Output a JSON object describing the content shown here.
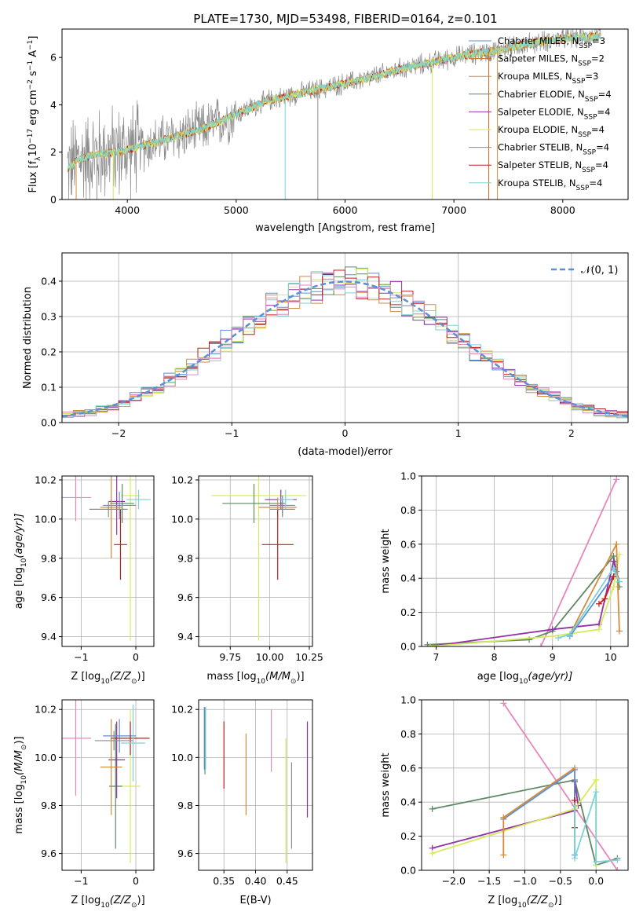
{
  "figure": {
    "title": "PLATE=1730, MJD=53498, FIBERID=0164, z=0.101"
  },
  "colors": {
    "Chabrier MILES": "#5b8fd6",
    "Salpeter MILES": "#d36a1a",
    "Kroupa MILES": "#d58a3a",
    "Chabrier ELODIE": "#5d8a63",
    "Salpeter ELODIE": "#9431a8",
    "Kroupa ELODIE": "#d6ea5c",
    "Chabrier STELIB": "#8c8c8c",
    "Salpeter STELIB": "#c21d1d",
    "Kroupa STELIB": "#7bd3d6",
    "pink": "#e587bd",
    "normal": "#5b8fd6"
  },
  "chart_data": [
    {
      "type": "line",
      "ylabel_main": "Flux [f",
      "ylabel_sub": "λ",
      "ylabel_rest": "10",
      "ylabel_sup1": "−17",
      "ylabel_rest2": " erg cm",
      "ylabel_sup2": "−2",
      "ylabel_rest3": " s",
      "ylabel_sup3": "−1",
      "ylabel_rest4": " A",
      "ylabel_sup4": "−1",
      "ylabel_end": "]",
      "xlabel": "wavelength [Angstrom, rest frame]",
      "xlim": [
        3400,
        8600
      ],
      "ylim": [
        0,
        7.2
      ],
      "xticks": [
        "4000",
        "5000",
        "6000",
        "7000",
        "8000"
      ],
      "yticks": [
        "0",
        "2",
        "4",
        "6"
      ],
      "grid": false,
      "legend_position": "right",
      "legend": [
        {
          "name": "Chabrier MILES",
          "n": "3"
        },
        {
          "name": "Salpeter MILES",
          "n": "2"
        },
        {
          "name": "Kroupa MILES",
          "n": "3"
        },
        {
          "name": "Chabrier ELODIE",
          "n": "4"
        },
        {
          "name": "Salpeter ELODIE",
          "n": "4"
        },
        {
          "name": "Kroupa ELODIE",
          "n": "4"
        },
        {
          "name": "Chabrier STELIB",
          "n": "4"
        },
        {
          "name": "Salpeter STELIB",
          "n": "4"
        },
        {
          "name": "Kroupa STELIB",
          "n": "4"
        }
      ],
      "nssp_prefix": ", N",
      "nssp_sub": "SSP",
      "nssp_eq": "=",
      "continuum_x": [
        3450,
        3550,
        3700,
        3900,
        4100,
        4400,
        4700,
        5000,
        5300,
        5600,
        5900,
        6200,
        6500,
        6800,
        7100,
        7400,
        7700,
        8000,
        8300
      ],
      "continuum_y": [
        1.3,
        1.7,
        1.9,
        2.0,
        2.2,
        2.6,
        3.0,
        3.6,
        4.2,
        4.5,
        4.8,
        5.1,
        5.5,
        5.8,
        6.1,
        6.3,
        6.6,
        6.8,
        6.9
      ]
    },
    {
      "type": "line",
      "ylabel": "Normed distribution",
      "xlabel": "(data-model)/error",
      "xlim": [
        -2.5,
        2.5
      ],
      "ylim": [
        0,
        0.48
      ],
      "xticks": [
        "−2",
        "−1",
        "0",
        "1",
        "2"
      ],
      "xtick_values": [
        -2,
        -1,
        0,
        1,
        2
      ],
      "yticks": [
        "0.0",
        "0.1",
        "0.2",
        "0.3",
        "0.4"
      ],
      "ytick_values": [
        0,
        0.1,
        0.2,
        0.3,
        0.4
      ],
      "grid": true,
      "legend_label": "𝒩(0, 1)",
      "legend_position": "upper right",
      "bin_width": 0.1
    },
    {
      "type": "scatter",
      "ylabel": "age  [log",
      "ylabel_sub": "10",
      "ylabel_rest": "(age/yr)]",
      "xlabel": "Z [log",
      "xlabel_sub": "10",
      "xlabel_rest": "(Z/Z",
      "xlabel_sub2": "⊙",
      "xlabel_end": ")]",
      "xlim": [
        -1.35,
        0.33
      ],
      "ylim": [
        9.35,
        10.22
      ],
      "xticks": [
        "−1",
        "0"
      ],
      "xtick_values": [
        -1,
        0
      ],
      "yticks": [
        "9.4",
        "9.6",
        "9.8",
        "10.0",
        "10.2"
      ],
      "ytick_values": [
        9.4,
        9.6,
        9.8,
        10.0,
        10.2
      ],
      "grid": true,
      "errorbars": [
        {
          "c": "pink",
          "x": -1.1,
          "xe": 0.28,
          "y": 10.11,
          "ye": 0.12
        },
        {
          "c": "Kroupa ELODIE",
          "x": -0.1,
          "xe": 0.18,
          "y": 10.12,
          "ye": 0.74
        },
        {
          "c": "Chabrier ELODIE",
          "x": -0.25,
          "xe": 0.22,
          "y": 10.08,
          "ye": 0.1
        },
        {
          "c": "Salpeter ELODIE",
          "x": -0.35,
          "xe": 0.15,
          "y": 10.09,
          "ye": 0.17
        },
        {
          "c": "Chabrier MILES",
          "x": -0.3,
          "xe": 0.3,
          "y": 10.07,
          "ye": 0.07
        },
        {
          "c": "Kroupa MILES",
          "x": -0.45,
          "xe": 0.2,
          "y": 10.06,
          "ye": 0.26
        },
        {
          "c": "Salpeter STELIB",
          "x": -0.28,
          "xe": 0.12,
          "y": 9.87,
          "ye": 0.18
        },
        {
          "c": "Kroupa STELIB",
          "x": 0.05,
          "xe": 0.22,
          "y": 10.1,
          "ye": 0.05
        },
        {
          "c": "Chabrier STELIB",
          "x": -0.5,
          "xe": 0.35,
          "y": 10.05,
          "ye": 0.04
        }
      ]
    },
    {
      "type": "scatter",
      "ylabel": "",
      "xlabel": "mass [log",
      "xlabel_sub": "10",
      "xlabel_rest": "(M/M",
      "xlabel_sub2": "⊙",
      "xlabel_end": ")]",
      "xlim": [
        9.55,
        10.27
      ],
      "ylim": [
        9.35,
        10.22
      ],
      "xticks": [
        "9.75",
        "10.00",
        "10.25"
      ],
      "xtick_values": [
        9.75,
        10.0,
        10.25
      ],
      "yticks": [
        "9.4",
        "9.6",
        "9.8",
        "10.0",
        "10.2"
      ],
      "ytick_values": [
        9.4,
        9.6,
        9.8,
        10.0,
        10.2
      ],
      "grid": true,
      "errorbars": [
        {
          "c": "Kroupa ELODIE",
          "x": 9.93,
          "xe": 0.3,
          "y": 10.12,
          "ye": 0.74
        },
        {
          "c": "Chabrier ELODIE",
          "x": 9.9,
          "xe": 0.2,
          "y": 10.08,
          "ye": 0.1
        },
        {
          "c": "Salpeter ELODIE",
          "x": 10.07,
          "xe": 0.1,
          "y": 10.1,
          "ye": 0.05
        },
        {
          "c": "Chabrier MILES",
          "x": 10.08,
          "xe": 0.08,
          "y": 10.07,
          "ye": 0.05
        },
        {
          "c": "Kroupa MILES",
          "x": 10.05,
          "xe": 0.12,
          "y": 10.06,
          "ye": 0.05
        },
        {
          "c": "Salpeter STELIB",
          "x": 10.05,
          "xe": 0.1,
          "y": 9.87,
          "ye": 0.18
        },
        {
          "c": "Kroupa STELIB",
          "x": 10.1,
          "xe": 0.05,
          "y": 10.1,
          "ye": 0.05
        },
        {
          "c": "Chabrier STELIB",
          "x": 10.08,
          "xe": 0.08,
          "y": 10.05,
          "ye": 0.04
        }
      ]
    },
    {
      "type": "line",
      "ylabel": "mass weight",
      "xlabel": "age  [log",
      "xlabel_sub": "10",
      "xlabel_rest": "(age/yr)]",
      "xlim": [
        6.75,
        10.3
      ],
      "ylim": [
        0,
        1.0
      ],
      "xticks": [
        "7",
        "8",
        "9",
        "10"
      ],
      "xtick_values": [
        7,
        8,
        9,
        10
      ],
      "yticks": [
        "0.0",
        "0.2",
        "0.4",
        "0.6",
        "0.8",
        "1.0"
      ],
      "ytick_values": [
        0,
        0.2,
        0.4,
        0.6,
        0.8,
        1.0
      ],
      "grid": true,
      "series": [
        {
          "c": "pink",
          "x": [
            8.8,
            10.1
          ],
          "y": [
            0.0,
            0.98
          ]
        },
        {
          "c": "Chabrier ELODIE",
          "x": [
            6.85,
            8.6,
            9.0,
            10.05,
            10.15
          ],
          "y": [
            0.01,
            0.04,
            0.09,
            0.53,
            0.35
          ]
        },
        {
          "c": "Salpeter ELODIE",
          "x": [
            6.9,
            9.0,
            9.8,
            10.05,
            10.15
          ],
          "y": [
            0.0,
            0.1,
            0.13,
            0.5,
            0.38
          ]
        },
        {
          "c": "Kroupa ELODIE",
          "x": [
            6.9,
            9.0,
            9.8,
            10.05,
            10.15
          ],
          "y": [
            0.0,
            0.06,
            0.1,
            0.35,
            0.54
          ]
        },
        {
          "c": "Chabrier MILES",
          "x": [
            9.3,
            10.1
          ],
          "y": [
            0.06,
            0.44
          ]
        },
        {
          "c": "Kroupa MILES",
          "x": [
            9.3,
            10.1,
            10.15
          ],
          "y": [
            0.07,
            0.6,
            0.09
          ]
        },
        {
          "c": "Salpeter STELIB",
          "x": [
            9.8,
            9.9,
            10.05
          ],
          "y": [
            0.25,
            0.28,
            0.41
          ]
        },
        {
          "c": "Kroupa STELIB",
          "x": [
            9.1,
            9.3,
            10.05,
            10.15
          ],
          "y": [
            0.05,
            0.07,
            0.46,
            0.38
          ]
        }
      ]
    },
    {
      "type": "scatter",
      "ylabel": "mass [log",
      "ylabel_sub": "10",
      "ylabel_rest": "(M/M",
      "ylabel_sub2": "⊙",
      "ylabel_end": ")]",
      "xlabel": "Z [log",
      "xlabel_sub": "10",
      "xlabel_rest": "(Z/Z",
      "xlabel_sub2": "⊙",
      "xlabel_end": ")]",
      "xlim": [
        -1.35,
        0.33
      ],
      "ylim": [
        9.53,
        10.24
      ],
      "xticks": [
        "−1",
        "0"
      ],
      "xtick_values": [
        -1,
        0
      ],
      "yticks": [
        "9.6",
        "9.8",
        "10.0",
        "10.2"
      ],
      "ytick_values": [
        9.6,
        9.8,
        10.0,
        10.2
      ],
      "grid": true,
      "errorbars": [
        {
          "c": "pink",
          "x": -1.1,
          "xe": 0.28,
          "y": 10.08,
          "ye": 0.24
        },
        {
          "c": "Kroupa ELODIE",
          "x": -0.1,
          "xe": 0.18,
          "y": 9.88,
          "ye": 0.32
        },
        {
          "c": "Chabrier ELODIE",
          "x": -0.37,
          "xe": 0.12,
          "y": 9.88,
          "ye": 0.26
        },
        {
          "c": "Salpeter ELODIE",
          "x": -0.35,
          "xe": 0.15,
          "y": 9.99,
          "ye": 0.16
        },
        {
          "c": "Chabrier MILES",
          "x": -0.3,
          "xe": 0.3,
          "y": 10.09,
          "ye": 0.07
        },
        {
          "c": "Kroupa MILES",
          "x": -0.45,
          "xe": 0.2,
          "y": 9.96,
          "ye": 0.2
        },
        {
          "c": "Salpeter STELIB",
          "x": -0.1,
          "xe": 0.35,
          "y": 10.08,
          "ye": 0.07
        },
        {
          "c": "Kroupa STELIB",
          "x": -0.05,
          "xe": 0.22,
          "y": 10.06,
          "ye": 0.16
        },
        {
          "c": "Chabrier STELIB",
          "x": -0.4,
          "xe": 0.35,
          "y": 10.07,
          "ye": 0.04
        }
      ]
    },
    {
      "type": "scatter",
      "ylabel": "",
      "xlabel": "E(B-V)",
      "xlim": [
        0.31,
        0.49
      ],
      "ylim": [
        9.53,
        10.24
      ],
      "xticks": [
        "0.35",
        "0.40",
        "0.45"
      ],
      "xtick_values": [
        0.35,
        0.4,
        0.45
      ],
      "yticks": [
        "9.6",
        "9.8",
        "10.0",
        "10.2"
      ],
      "ytick_values": [
        9.6,
        9.8,
        10.0,
        10.2
      ],
      "grid": true,
      "errorbars": [
        {
          "c": "Chabrier ELODIE",
          "x": 0.32,
          "xe": 0,
          "y": 10.07,
          "ye": 0.14
        },
        {
          "c": "Chabrier MILES",
          "x": 0.319,
          "xe": 0,
          "y": 10.08,
          "ye": 0.13
        },
        {
          "c": "Kroupa STELIB",
          "x": 0.321,
          "xe": 0,
          "y": 10.08,
          "ye": 0.13
        },
        {
          "c": "Salpeter STELIB",
          "x": 0.35,
          "xe": 0,
          "y": 10.01,
          "ye": 0.14
        },
        {
          "c": "Kroupa MILES",
          "x": 0.385,
          "xe": 0,
          "y": 9.93,
          "ye": 0.17
        },
        {
          "c": "pink",
          "x": 0.425,
          "xe": 0,
          "y": 10.07,
          "ye": 0.13
        },
        {
          "c": "Kroupa ELODIE",
          "x": 0.448,
          "xe": 0,
          "y": 9.82,
          "ye": 0.26
        },
        {
          "c": "Chabrier STELIB",
          "x": 0.457,
          "xe": 0,
          "y": 9.8,
          "ye": 0.18
        },
        {
          "c": "Salpeter ELODIE",
          "x": 0.482,
          "xe": 0,
          "y": 9.95,
          "ye": 0.2
        }
      ]
    },
    {
      "type": "line",
      "ylabel": "mass weight",
      "xlabel": "Z [log",
      "xlabel_sub": "10",
      "xlabel_rest": "(Z/Z",
      "xlabel_sub2": "⊙",
      "xlabel_end": ")]",
      "xlim": [
        -2.45,
        0.45
      ],
      "ylim": [
        0,
        1.0
      ],
      "xticks": [
        "−2.0",
        "−1.5",
        "−1.0",
        "−0.5",
        "0.0"
      ],
      "xtick_values": [
        -2.0,
        -1.5,
        -1.0,
        -0.5,
        0.0
      ],
      "yticks": [
        "0.0",
        "0.2",
        "0.4",
        "0.6",
        "0.8",
        "1.0"
      ],
      "ytick_values": [
        0,
        0.2,
        0.4,
        0.6,
        0.8,
        1.0
      ],
      "grid": true,
      "series": [
        {
          "c": "pink",
          "x": [
            -1.3,
            0.3
          ],
          "y": [
            0.98,
            0.0
          ]
        },
        {
          "c": "Chabrier ELODIE",
          "x": [
            -2.3,
            -0.3,
            0.0,
            0.3
          ],
          "y": [
            0.36,
            0.53,
            0.03,
            0.07
          ]
        },
        {
          "c": "Salpeter ELODIE",
          "x": [
            -2.3,
            -0.3,
            -0.3,
            -0.25
          ],
          "y": [
            0.13,
            0.35,
            0.52,
            0.38
          ]
        },
        {
          "c": "Kroupa ELODIE",
          "x": [
            -2.3,
            -0.3,
            0.0,
            0.0
          ],
          "y": [
            0.1,
            0.36,
            0.53,
            0.03
          ]
        },
        {
          "c": "Chabrier MILES",
          "x": [
            -1.3,
            -0.3,
            -0.3
          ],
          "y": [
            0.3,
            0.59,
            0.09
          ]
        },
        {
          "c": "Kroupa MILES",
          "x": [
            -1.3,
            -1.3,
            -0.3
          ],
          "y": [
            0.09,
            0.31,
            0.6
          ]
        },
        {
          "c": "Salpeter STELIB",
          "x": [
            -0.3,
            -0.3
          ],
          "y": [
            0.41,
            0.25
          ]
        },
        {
          "c": "Kroupa STELIB",
          "x": [
            -0.3,
            -0.3,
            0.0,
            0.0,
            0.3
          ],
          "y": [
            0.38,
            0.07,
            0.46,
            0.05,
            0.06
          ]
        }
      ]
    }
  ]
}
